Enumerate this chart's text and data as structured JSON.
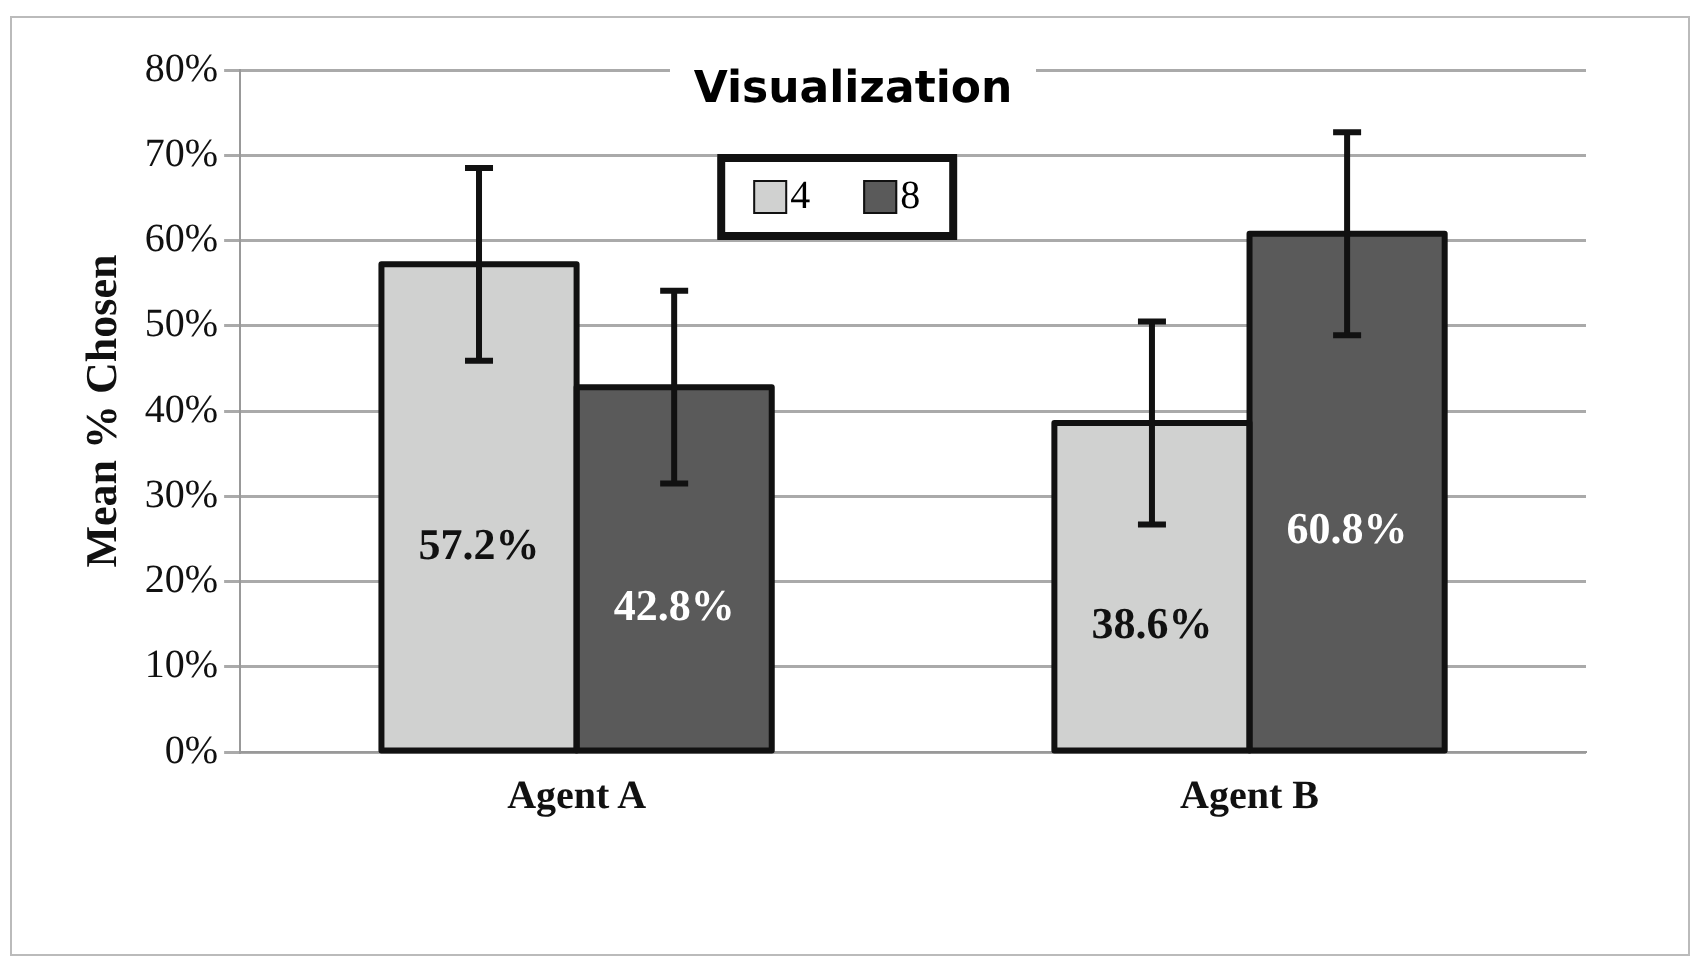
{
  "chart_data": {
    "type": "bar",
    "title": "Visualization",
    "ylabel": "Mean % Chosen",
    "categories": [
      "Agent A",
      "Agent B"
    ],
    "series": [
      {
        "name": "4",
        "color": "#d0d1d0",
        "values": [
          57.2,
          38.6
        ],
        "errors": [
          11.3,
          11.9
        ],
        "value_labels": [
          "57.2%",
          "38.6%"
        ]
      },
      {
        "name": "8",
        "color": "#5a5a5a",
        "values": [
          42.8,
          60.8
        ],
        "errors": [
          11.3,
          11.9
        ],
        "value_labels": [
          "42.8%",
          "60.8%"
        ]
      }
    ],
    "ylim": [
      0,
      80
    ],
    "yticks": [
      {
        "value": 0,
        "label": "0%"
      },
      {
        "value": 10,
        "label": "10%"
      },
      {
        "value": 20,
        "label": "20%"
      },
      {
        "value": 30,
        "label": "30%"
      },
      {
        "value": 40,
        "label": "40%"
      },
      {
        "value": 50,
        "label": "50%"
      },
      {
        "value": 60,
        "label": "60%"
      },
      {
        "value": 70,
        "label": "70%"
      },
      {
        "value": 80,
        "label": "80%"
      }
    ],
    "grid": "y",
    "legend": "top"
  }
}
